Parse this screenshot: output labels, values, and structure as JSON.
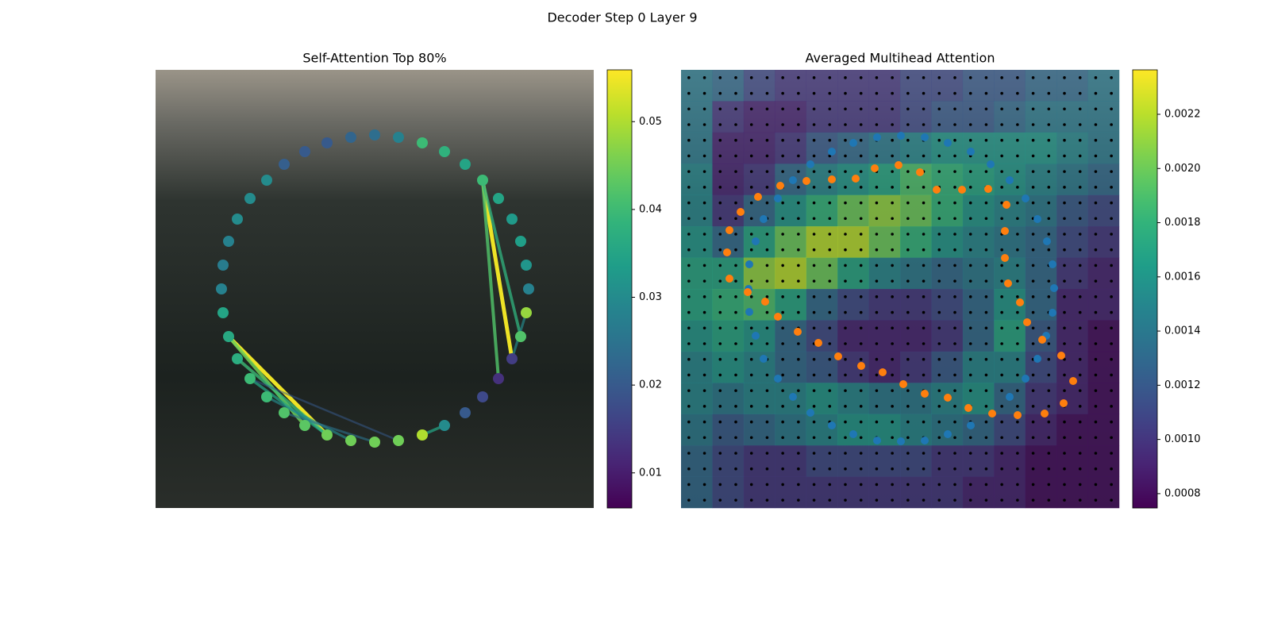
{
  "title": "Decoder Step 0 Layer 9",
  "chart_data": [
    {
      "type": "graph",
      "title": "Self-Attention Top 80%",
      "colormap": "viridis",
      "xlim": [
        0,
        552
      ],
      "ylim": [
        552,
        0
      ],
      "nodes": {
        "x": [
          216,
          246,
          276,
          306,
          336,
          364,
          390,
          412,
          432,
          449,
          460,
          467,
          470,
          467,
          460,
          449,
          432,
          412,
          390,
          364,
          336,
          306,
          276,
          246,
          216,
          188,
          162,
          140,
          119,
          103,
          92,
          85,
          83,
          85,
          92,
          103,
          119,
          140,
          162,
          188
        ],
        "y": [
          92,
          85,
          83,
          85,
          92,
          104,
          120,
          140,
          163,
          188,
          216,
          246,
          276,
          306,
          336,
          364,
          390,
          413,
          433,
          449,
          460,
          467,
          470,
          467,
          460,
          449,
          433,
          413,
          390,
          364,
          336,
          306,
          276,
          246,
          216,
          188,
          163,
          140,
          120,
          104
        ],
        "values": [
          0.045,
          0.045,
          0.045,
          0.045,
          0.05,
          0.03,
          0.02,
          0.017,
          0.013,
          0.015,
          0.042,
          0.048,
          0.028,
          0.032,
          0.034,
          0.033,
          0.035,
          0.04,
          0.035,
          0.038,
          0.04,
          0.028,
          0.024,
          0.022,
          0.02,
          0.02,
          0.021,
          0.03,
          0.03,
          0.03,
          0.028,
          0.027,
          0.028,
          0.035,
          0.036,
          0.037,
          0.04,
          0.04,
          0.042,
          0.043
        ]
      },
      "edges": {
        "source": [
          34,
          34,
          35,
          36,
          37,
          38,
          36,
          17,
          17,
          17,
          9,
          4
        ],
        "target": [
          0,
          39,
          0,
          0,
          1,
          2,
          3,
          9,
          8,
          10,
          11,
          5
        ],
        "values": [
          0.055,
          0.045,
          0.04,
          0.035,
          0.03,
          0.025,
          0.02,
          0.055,
          0.042,
          0.038,
          0.03,
          0.035
        ]
      },
      "colorbar": {
        "lim": [
          0.006,
          0.0559
        ],
        "ticks": [
          0.01,
          0.02,
          0.03,
          0.04,
          0.05
        ]
      }
    },
    {
      "type": "heatmap",
      "title": "Averaged Multihead Attention",
      "colormap": "viridis",
      "xlim": [
        0,
        552
      ],
      "ylim": [
        552,
        0
      ],
      "values": [
        [
          0.0014,
          0.0013,
          0.0011,
          0.001,
          0.001,
          0.001,
          0.001,
          0.0011,
          0.0011,
          0.0012,
          0.0012,
          0.0013,
          0.0013,
          0.0014
        ],
        [
          0.0014,
          0.001,
          0.0009,
          0.0009,
          0.001,
          0.001,
          0.001,
          0.0011,
          0.0012,
          0.0012,
          0.0013,
          0.0014,
          0.0014,
          0.0014
        ],
        [
          0.0014,
          0.0009,
          0.0009,
          0.001,
          0.0012,
          0.0013,
          0.0014,
          0.0015,
          0.0016,
          0.0016,
          0.0016,
          0.0016,
          0.0015,
          0.0014
        ],
        [
          0.0015,
          0.0009,
          0.001,
          0.0013,
          0.0015,
          0.0016,
          0.0017,
          0.0019,
          0.0018,
          0.0017,
          0.0016,
          0.0015,
          0.0014,
          0.0013
        ],
        [
          0.0015,
          0.001,
          0.0013,
          0.0016,
          0.0018,
          0.002,
          0.0021,
          0.002,
          0.0018,
          0.0016,
          0.0015,
          0.0014,
          0.0012,
          0.0011
        ],
        [
          0.0016,
          0.0013,
          0.0017,
          0.002,
          0.0022,
          0.0022,
          0.002,
          0.0018,
          0.0016,
          0.0015,
          0.0014,
          0.0013,
          0.0011,
          0.001
        ],
        [
          0.0017,
          0.0017,
          0.0021,
          0.0022,
          0.002,
          0.0017,
          0.0015,
          0.0014,
          0.0013,
          0.0014,
          0.0015,
          0.0013,
          0.001,
          0.0009
        ],
        [
          0.0017,
          0.0018,
          0.0019,
          0.0017,
          0.0013,
          0.0011,
          0.001,
          0.001,
          0.0011,
          0.0013,
          0.0016,
          0.0013,
          0.0009,
          0.0009
        ],
        [
          0.0016,
          0.0017,
          0.0016,
          0.0013,
          0.0011,
          0.0009,
          0.0009,
          0.0009,
          0.001,
          0.0013,
          0.0017,
          0.0012,
          0.0009,
          0.0008
        ],
        [
          0.0015,
          0.0016,
          0.0015,
          0.0013,
          0.0012,
          0.001,
          0.0009,
          0.001,
          0.0012,
          0.0015,
          0.0015,
          0.0011,
          0.0009,
          0.0008
        ],
        [
          0.0015,
          0.0014,
          0.0015,
          0.0015,
          0.0016,
          0.0015,
          0.0014,
          0.0014,
          0.0015,
          0.0016,
          0.0013,
          0.001,
          0.0009,
          0.0008
        ],
        [
          0.0014,
          0.0012,
          0.0013,
          0.0014,
          0.0015,
          0.0016,
          0.0016,
          0.0015,
          0.0014,
          0.0013,
          0.0011,
          0.0009,
          0.0008,
          0.0008
        ],
        [
          0.0013,
          0.0011,
          0.001,
          0.001,
          0.0011,
          0.0011,
          0.0011,
          0.0011,
          0.001,
          0.001,
          0.0009,
          0.0008,
          0.0008,
          0.0008
        ],
        [
          0.0013,
          0.0011,
          0.001,
          0.001,
          0.001,
          0.001,
          0.001,
          0.001,
          0.001,
          0.0009,
          0.0009,
          0.0008,
          0.0008,
          0.0008
        ]
      ],
      "points": [
        {
          "color": "#1f77b4",
          "x": [
            190,
            217,
            247,
            277,
            307,
            336,
            365,
            414,
            434,
            449,
            460,
            468,
            470,
            468,
            461,
            449,
            434,
            414,
            390,
            365,
            336,
            307,
            277,
            247,
            217,
            190,
            163,
            141,
            122,
            104,
            94,
            86,
            85,
            86,
            94,
            104,
            122,
            141,
            163
          ],
          "y": [
            104,
            93,
            85,
            84,
            85,
            93,
            104,
            140,
            163,
            188,
            217,
            246,
            277,
            307,
            336,
            364,
            390,
            413,
            433,
            449,
            460,
            467,
            469,
            467,
            460,
            449,
            433,
            413,
            390,
            364,
            336,
            307,
            276,
            247,
            217,
            188,
            163,
            140,
            120
          ]
        },
        {
          "color": "#ff7f0e",
          "x": [
            362,
            392,
            424,
            458,
            482,
            494,
            479,
            455,
            436,
            427,
            412,
            408,
            408,
            410,
            387,
            354,
            322,
            301,
            274,
            244,
            220,
            190,
            158,
            125,
            97,
            75,
            61,
            58,
            61,
            84,
            106,
            122,
            147,
            173,
            198,
            227,
            254,
            280,
            307,
            336
          ],
          "y": [
            126,
            119,
            117,
            119,
            132,
            160,
            192,
            212,
            234,
            259,
            283,
            315,
            349,
            382,
            402,
            401,
            401,
            423,
            432,
            428,
            415,
            414,
            412,
            406,
            392,
            373,
            350,
            322,
            289,
            272,
            260,
            241,
            222,
            208,
            191,
            179,
            171,
            156,
            144,
            139
          ]
        }
      ],
      "colorbar": {
        "lim": [
          0.000747,
          0.002364
        ],
        "ticks": [
          0.0008,
          0.001,
          0.0012,
          0.0014,
          0.0016,
          0.0018,
          0.002,
          0.0022
        ],
        "tick_labels": [
          {
            "value": 0.0008,
            "label": "0.0008"
          },
          {
            "value": 0.001,
            "label": "0.0010"
          },
          {
            "value": 0.0012,
            "label": "0.0012"
          },
          {
            "value": 0.0014,
            "label": "0.0014"
          },
          {
            "value": 0.0016,
            "label": "0.0016"
          },
          {
            "value": 0.0018,
            "label": "0.0018"
          },
          {
            "value": 0.002,
            "label": "0.0020"
          },
          {
            "value": 0.0022,
            "label": "0.0022"
          }
        ]
      }
    }
  ]
}
